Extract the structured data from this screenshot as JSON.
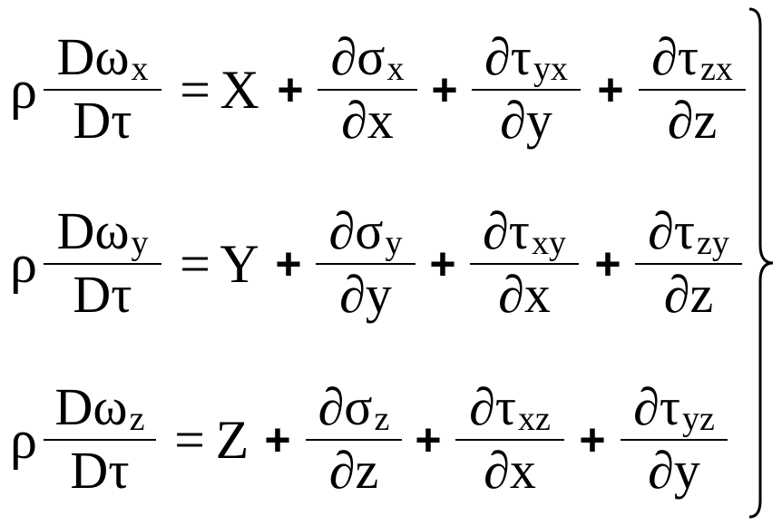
{
  "equations": [
    {
      "coef": "ρ",
      "lhs": {
        "num": "Dω",
        "sub": "x",
        "den": "Dτ"
      },
      "eq": "=",
      "force": "X",
      "plus": "+",
      "terms": [
        {
          "num": "∂σ",
          "sub": "x",
          "den": "∂x"
        },
        {
          "num": "∂τ",
          "sub": "yx",
          "den": "∂y"
        },
        {
          "num": "∂τ",
          "sub": "zx",
          "den": "∂z"
        }
      ]
    },
    {
      "coef": "ρ",
      "lhs": {
        "num": "Dω",
        "sub": "y",
        "den": "Dτ"
      },
      "eq": "=",
      "force": "Y",
      "plus": "+",
      "terms": [
        {
          "num": "∂σ",
          "sub": "y",
          "den": "∂y"
        },
        {
          "num": "∂τ",
          "sub": "xy",
          "den": "∂x"
        },
        {
          "num": "∂τ",
          "sub": "zy",
          "den": "∂z"
        }
      ]
    },
    {
      "coef": "ρ",
      "lhs": {
        "num": "Dω",
        "sub": "z",
        "den": "Dτ"
      },
      "eq": "=",
      "force": "Z",
      "plus": "+",
      "terms": [
        {
          "num": "∂σ",
          "sub": "z",
          "den": "∂z"
        },
        {
          "num": "∂τ",
          "sub": "xz",
          "den": "∂x"
        },
        {
          "num": "∂τ",
          "sub": "yz",
          "den": "∂y"
        }
      ]
    }
  ],
  "brace": "}"
}
